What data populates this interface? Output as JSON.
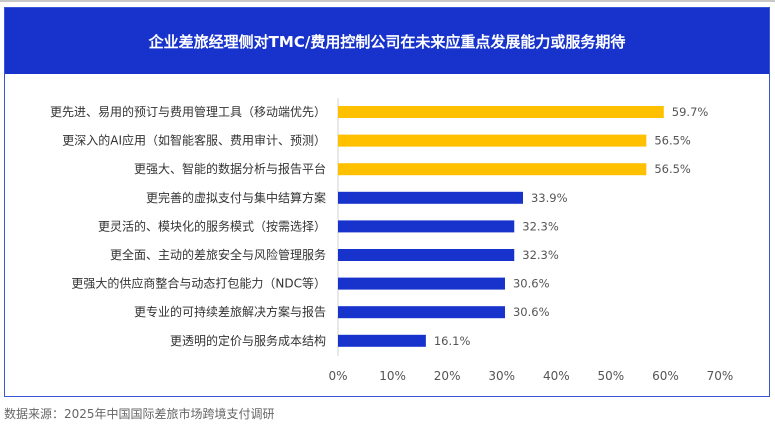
{
  "chart_data": {
    "type": "bar",
    "orientation": "horizontal",
    "title": "企业差旅经理侧对TMC/费用控制公司在未来应重点发展能力或服务期待",
    "categories": [
      "更先进、易用的预订与费用管理工具（移动端优先）",
      "更深入的AI应用（如智能客服、费用审计、预测）",
      "更强大、智能的数据分析与报告平台",
      "更完善的虚拟支付与集中结算方案",
      "更灵活的、模块化的服务模式（按需选择）",
      "更全面、主动的差旅安全与风险管理服务",
      "更强大的供应商整合与动态打包能力（NDC等）",
      "更专业的可持续差旅解决方案与报告",
      "更透明的定价与服务成本结构"
    ],
    "values": [
      59.7,
      56.5,
      56.5,
      33.9,
      32.3,
      32.3,
      30.6,
      30.6,
      16.1
    ],
    "value_labels": [
      "59.7%",
      "56.5%",
      "56.5%",
      "33.9%",
      "32.3%",
      "32.3%",
      "30.6%",
      "30.6%",
      "16.1%"
    ],
    "highlight_count": 3,
    "xlim": [
      0,
      70
    ],
    "x_ticks": [
      "0%",
      "10%",
      "20%",
      "30%",
      "40%",
      "50%",
      "60%",
      "70%"
    ],
    "grid": false,
    "colors": {
      "highlight": "#FFC000",
      "normal": "#1733CC",
      "title_band": "#1733CC"
    }
  },
  "source": "数据来源：2025年中国国际差旅市场跨境支付调研"
}
